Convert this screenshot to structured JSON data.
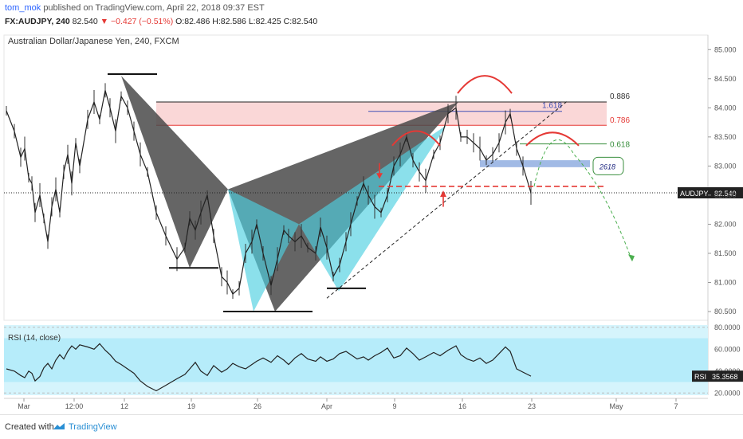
{
  "header": {
    "publisher": "tom_mok",
    "published_text": "published on TradingView.com, April 22, 2018 09:37 EST",
    "symbol": "FX:AUDJPY, 240",
    "price": "82.540",
    "change": "▼ −0.427 (−0.51%)",
    "open": "O:82.486",
    "high": "H:82.586",
    "low": "L:82.425",
    "close": "C:82.540"
  },
  "footer": {
    "created_with": "Created with",
    "brand": "TradingView"
  },
  "chart_data": [
    {
      "type": "line",
      "title": "Australian Dollar/Japanese Yen, 240, FXCM",
      "x_tick_labels": [
        "Mar",
        "12:00",
        "12",
        "19",
        "26",
        "Apr",
        "9",
        "16",
        "23",
        "May",
        "7"
      ],
      "y_tick_labels": [
        "85.000",
        "84.500",
        "84.000",
        "83.500",
        "83.000",
        "82.500",
        "82.000",
        "81.500",
        "81.000",
        "80.500"
      ],
      "ylim": [
        80.35,
        85.25
      ],
      "grid": false,
      "series": [
        {
          "values": [
            83.95,
            83.6,
            83.15,
            83.3,
            82.8,
            82.7,
            82.2,
            82.5,
            82.1,
            81.7,
            82.3,
            82.6,
            82.2,
            82.9,
            83.2,
            82.7,
            83.4,
            83.0,
            83.8,
            84.1,
            83.8,
            84.3,
            84.0,
            83.6,
            84.2,
            84.0,
            83.6,
            83.2,
            82.9,
            82.2,
            81.8,
            81.4,
            81.6,
            82.1,
            81.9,
            82.2,
            82.5,
            81.8,
            81.1,
            81.0,
            80.8,
            80.9,
            81.5,
            81.7,
            82.0,
            81.5,
            80.95,
            81.4,
            81.9,
            81.8,
            81.7,
            81.8,
            81.6,
            81.5,
            81.95,
            81.6,
            81.1,
            81.3,
            81.7,
            82.0,
            82.4,
            82.7,
            82.5,
            82.3,
            82.2,
            82.5,
            83.0,
            83.2,
            83.5,
            83.1,
            82.9,
            82.75,
            83.2,
            83.4,
            83.9,
            84.0,
            83.5,
            83.5,
            83.4,
            83.3,
            83.1,
            83.2,
            83.4,
            83.75,
            83.9,
            83.3,
            83.0,
            82.54
          ],
          "color": "#222222"
        }
      ],
      "last_price_label": "AUDJPY",
      "last_price": "82.540",
      "annotations": {
        "fib_levels": [
          {
            "label": "0.886",
            "color": "#333333"
          },
          {
            "label": "0.786",
            "color": "#e53935"
          },
          {
            "label": "1.618",
            "color": "#3f51b5"
          },
          {
            "label": "0.618",
            "color": "#388e3c"
          }
        ],
        "target_box_label": "2618",
        "pattern_colors": {
          "dark_pattern": "#4a4a4a",
          "cyan_pattern": "#4dd0e1",
          "zone_red": "#f8caca",
          "zone_blue": "#90aee0"
        }
      }
    },
    {
      "type": "line",
      "title": "RSI (14, close)",
      "y_tick_labels": [
        "80.0000",
        "60.0000",
        "40.0000",
        "20.0000"
      ],
      "ylim": [
        18,
        82
      ],
      "band": [
        30,
        70
      ],
      "series": [
        {
          "values": [
            42,
            40,
            36,
            34,
            40,
            38,
            31,
            35,
            43,
            47,
            42,
            50,
            55,
            51,
            58,
            63,
            60,
            64,
            62,
            60,
            65,
            59,
            55,
            49,
            46,
            42,
            38,
            31,
            26,
            22,
            27,
            33,
            37,
            42,
            48,
            40,
            36,
            45,
            39,
            42,
            47,
            44,
            42,
            46,
            49,
            52,
            48,
            54,
            50,
            46,
            52,
            56,
            51,
            49,
            53,
            49,
            51,
            56,
            58,
            55,
            51,
            53,
            50,
            54,
            57,
            61,
            52,
            54,
            61,
            56,
            50,
            53,
            57,
            54,
            59,
            63,
            55,
            51,
            49,
            52,
            47,
            50,
            56,
            62,
            58,
            42,
            39,
            35.36
          ],
          "color": "#222222"
        }
      ],
      "last_label": "RSI",
      "last_value": "35.3568",
      "colors": {
        "band_fill": "#b6ecfa",
        "panel_fill": "#d5f4fc"
      }
    }
  ]
}
